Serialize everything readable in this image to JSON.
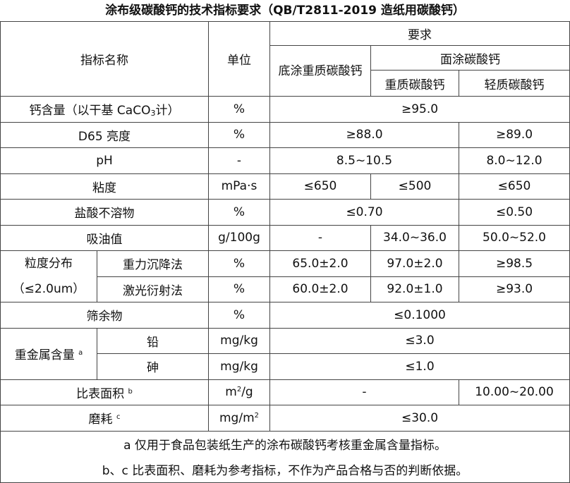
{
  "title": "涂布级碳酸钙的技术指标要求（QB/T2811-2019 造纸用碳酸钙）",
  "header": {
    "name": "指标名称",
    "unit": "单位",
    "requirement": "要求",
    "base_coat": "底涂重质碳酸钙",
    "top_coat": "面涂碳酸钙",
    "top_heavy": "重质碳酸钙",
    "top_light": "轻质碳酸钙"
  },
  "rows": {
    "calcium": {
      "name": "钙含量（以干基 CaCO",
      "name_sub": "3",
      "name_end": "计）",
      "unit": "%",
      "value": "≥95.0"
    },
    "brightness": {
      "name": "D65 亮度",
      "unit": "%",
      "v1": "≥88.0",
      "v2": "≥89.0"
    },
    "ph": {
      "name": "pH",
      "unit": "-",
      "v1": "8.5~10.5",
      "v2": "8.0~12.0"
    },
    "viscosity": {
      "name": "粘度",
      "unit": "mPa·s",
      "v1": "≤650",
      "v2": "≤500",
      "v3": "≤650"
    },
    "hcl_insoluble": {
      "name": "盐酸不溶物",
      "unit": "%",
      "v1": "≤0.70",
      "v2": "≤0.50"
    },
    "oil_absorption": {
      "name": "吸油值",
      "unit": "g/100g",
      "v1": "-",
      "v2": "34.0~36.0",
      "v3": "50.0~52.0"
    },
    "particle": {
      "name": "粒度分布",
      "name2": "（≤2.0um）",
      "sedimentation": {
        "name": "重力沉降法",
        "unit": "%",
        "v1": "65.0±2.0",
        "v2": "97.0±2.0",
        "v3": "≥98.5"
      },
      "laser": {
        "name": "激光衍射法",
        "unit": "%",
        "v1": "60.0±2.0",
        "v2": "92.0±1.0",
        "v3": "≥93.0"
      }
    },
    "sieve": {
      "name": "筛余物",
      "unit": "%",
      "value": "≤0.1000"
    },
    "heavy_metal": {
      "name": "重金属含量",
      "mark": "a",
      "lead": {
        "name": "铅",
        "unit": "mg/kg",
        "value": "≤3.0"
      },
      "arsenic": {
        "name": "砷",
        "unit": "mg/kg",
        "value": "≤1.0"
      }
    },
    "surface_area": {
      "name": "比表面积",
      "mark": "b",
      "unit_base": "m",
      "unit_sup": "2",
      "unit_end": "/g",
      "v1": "-",
      "v2": "10.00~20.00"
    },
    "abrasion": {
      "name": "磨耗",
      "mark": "c",
      "unit_base": "mg/m",
      "unit_sup": "2",
      "value": "≤30.0"
    }
  },
  "notes": [
    "a 仅用于食品包装纸生产的涂布碳酸钙考核重金属含量指标。",
    "b、c 比表面积、磨耗为参考指标，不作为产品合格与否的判断依据。"
  ]
}
